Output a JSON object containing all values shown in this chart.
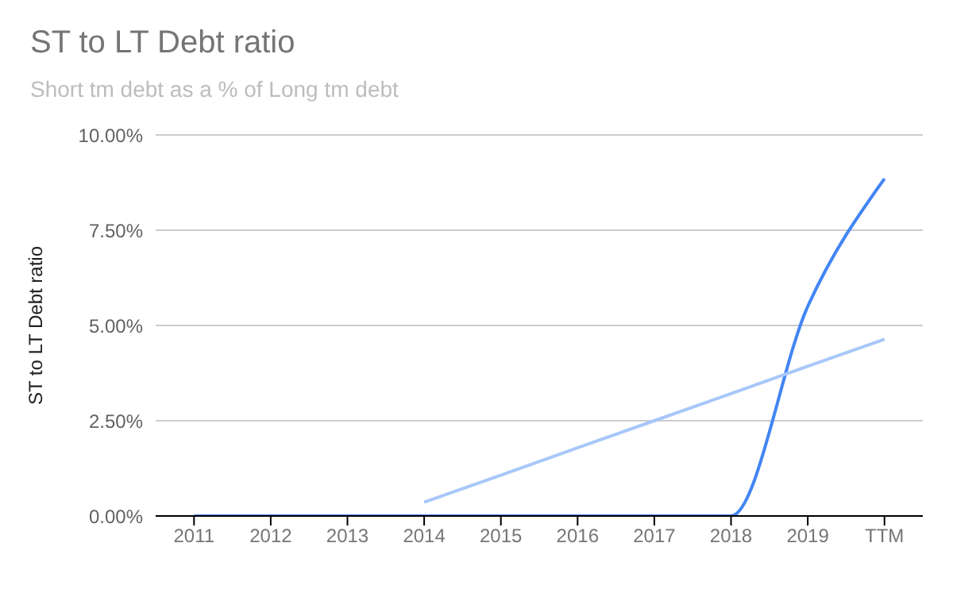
{
  "chart_data": {
    "type": "line",
    "title": "ST to LT Debt ratio",
    "subtitle": "Short tm debt as a % of Long tm debt",
    "ylabel": "ST to LT Debt ratio",
    "categories": [
      "2011",
      "2012",
      "2013",
      "2014",
      "2015",
      "2016",
      "2017",
      "2018",
      "2019",
      "TTM"
    ],
    "series": [
      {
        "color": "#4285f4",
        "values": [
          0,
          0,
          0,
          0,
          0,
          0,
          0,
          0,
          5.5,
          8.85
        ]
      },
      {
        "type": "line",
        "color": "#a8c7fa",
        "values": [
          null,
          null,
          null,
          0.36,
          1.07,
          1.79,
          2.5,
          3.21,
          3.93,
          4.64
        ]
      }
    ],
    "ylim": [
      0,
      10
    ],
    "yticks": [
      {
        "value": 0,
        "label": "0.00%"
      },
      {
        "value": 2.5,
        "label": "2.50%"
      },
      {
        "value": 5,
        "label": "5.00%"
      },
      {
        "value": 7.5,
        "label": "7.50%"
      },
      {
        "value": 10,
        "label": "10.00%"
      }
    ],
    "grid": "y",
    "marker": "none",
    "line_style": "solid"
  }
}
